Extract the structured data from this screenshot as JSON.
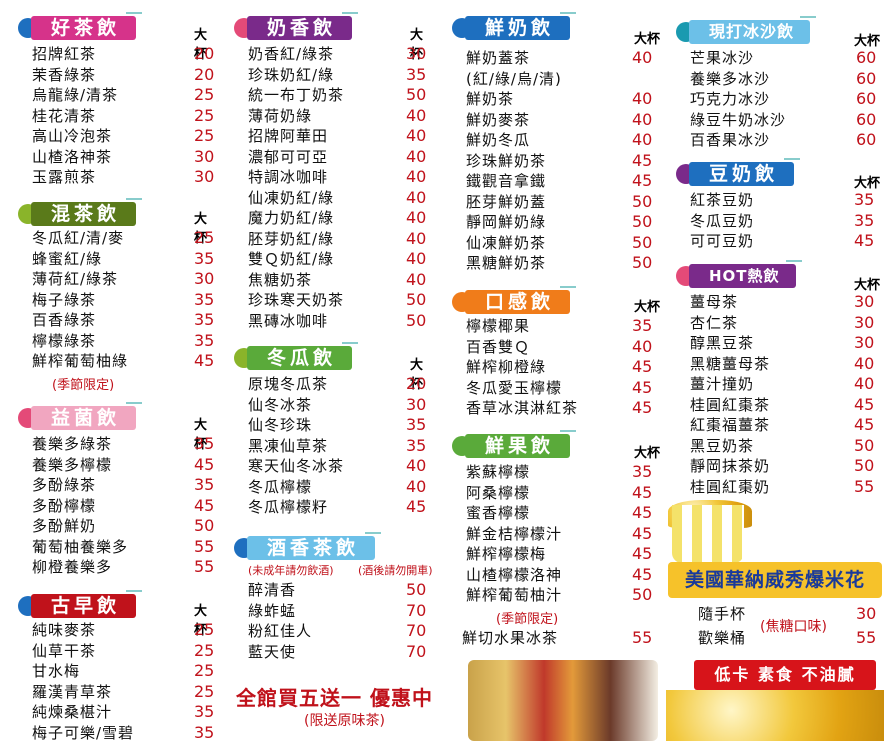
{
  "size_label": "大杯",
  "colors": {
    "price": "#c0121b",
    "pink": "#d6338a",
    "green": "#5a7a1a",
    "blue": "#1e6fbf",
    "orange": "#f07c1a",
    "purple": "#7a2a8a",
    "red": "#c0121b",
    "teal": "#1a9ab0"
  },
  "good_tea": {
    "title": "好茶飲",
    "items": [
      {
        "name": "招牌紅茶",
        "price": "20"
      },
      {
        "name": "茉香綠茶",
        "price": "20"
      },
      {
        "name": "烏龍綠/清茶",
        "price": "25"
      },
      {
        "name": "桂花清茶",
        "price": "25"
      },
      {
        "name": "高山冷泡茶",
        "price": "25"
      },
      {
        "name": "山楂洛神茶",
        "price": "30"
      },
      {
        "name": "玉露煎茶",
        "price": "30"
      }
    ]
  },
  "mixed_tea": {
    "title": "混茶飲",
    "items": [
      {
        "name": "冬瓜紅/清/麥",
        "price": "25"
      },
      {
        "name": "蜂蜜紅/綠",
        "price": "35"
      },
      {
        "name": "薄荷紅/綠茶",
        "price": "30"
      },
      {
        "name": "梅子綠茶",
        "price": "35"
      },
      {
        "name": "百香綠茶",
        "price": "35"
      },
      {
        "name": "檸檬綠茶",
        "price": "35"
      },
      {
        "name": "鮮榨葡萄柚綠",
        "price": "45"
      }
    ],
    "note": "(季節限定)"
  },
  "probiotic": {
    "title": "益菌飲",
    "items": [
      {
        "name": "養樂多綠茶",
        "price": "35"
      },
      {
        "name": "養樂多檸檬",
        "price": "45"
      },
      {
        "name": "多酚綠茶",
        "price": "35"
      },
      {
        "name": "多酚檸檬",
        "price": "45"
      },
      {
        "name": "多酚鮮奶",
        "price": "50"
      },
      {
        "name": "葡萄柚養樂多",
        "price": "55"
      },
      {
        "name": "柳橙養樂多",
        "price": "55"
      }
    ]
  },
  "classic": {
    "title": "古早飲",
    "items": [
      {
        "name": "純味麥茶",
        "price": "25"
      },
      {
        "name": "仙草干茶",
        "price": "25"
      },
      {
        "name": "甘水梅",
        "price": "25"
      },
      {
        "name": "羅漢青草茶",
        "price": "25"
      },
      {
        "name": "純煉桑椹汁",
        "price": "35"
      },
      {
        "name": "梅子可樂/雪碧",
        "price": "35"
      }
    ]
  },
  "milk_tea": {
    "title": "奶香飲",
    "items": [
      {
        "name": "奶香紅/綠茶",
        "price": "30"
      },
      {
        "name": "珍珠奶紅/綠",
        "price": "35"
      },
      {
        "name": "統一布丁奶茶",
        "price": "50"
      },
      {
        "name": "薄荷奶綠",
        "price": "40"
      },
      {
        "name": "招牌阿華田",
        "price": "40"
      },
      {
        "name": "濃郁可可亞",
        "price": "40"
      },
      {
        "name": "特調冰咖啡",
        "price": "40"
      },
      {
        "name": "仙凍奶紅/綠",
        "price": "40"
      },
      {
        "name": "魔力奶紅/綠",
        "price": "40"
      },
      {
        "name": "胚芽奶紅/綠",
        "price": "40"
      },
      {
        "name": "雙Ｑ奶紅/綠",
        "price": "40"
      },
      {
        "name": "焦糖奶茶",
        "price": "40"
      },
      {
        "name": "珍珠寒天奶茶",
        "price": "50"
      },
      {
        "name": "黑磚冰咖啡",
        "price": "50"
      }
    ]
  },
  "winter_melon": {
    "title": "冬瓜飲",
    "items": [
      {
        "name": "原塊冬瓜茶",
        "price": "20"
      },
      {
        "name": "仙冬冰茶",
        "price": "30"
      },
      {
        "name": "仙冬珍珠",
        "price": "35"
      },
      {
        "name": "黑凍仙草茶",
        "price": "35"
      },
      {
        "name": "寒天仙冬冰茶",
        "price": "40"
      },
      {
        "name": "冬瓜檸檬",
        "price": "40"
      },
      {
        "name": "冬瓜檸檬籽",
        "price": "45"
      }
    ]
  },
  "wine_tea": {
    "title": "酒香茶飲",
    "note_left": "(未成年請勿飲酒)",
    "note_right": "(酒後請勿開車)",
    "items": [
      {
        "name": "醉清香",
        "price": "50"
      },
      {
        "name": "綠蚱蜢",
        "price": "70"
      },
      {
        "name": "粉紅佳人",
        "price": "70"
      },
      {
        "name": "藍天使",
        "price": "70"
      }
    ]
  },
  "promo": {
    "main": "全館買五送一 優惠中",
    "sub": "(限送原味茶)"
  },
  "fresh_milk": {
    "title": "鮮奶飲",
    "items": [
      {
        "name": "鮮奶蓋茶",
        "price": "40"
      },
      {
        "name": "(紅/綠/烏/清)",
        "price": ""
      },
      {
        "name": "鮮奶茶",
        "price": "40"
      },
      {
        "name": "鮮奶麥茶",
        "price": "40"
      },
      {
        "name": "鮮奶冬瓜",
        "price": "40"
      },
      {
        "name": "珍珠鮮奶茶",
        "price": "45"
      },
      {
        "name": "鐵觀音拿鐵",
        "price": "45"
      },
      {
        "name": "胚芽鮮奶蓋",
        "price": "50"
      },
      {
        "name": "靜岡鮮奶綠",
        "price": "50"
      },
      {
        "name": "仙凍鮮奶茶",
        "price": "50"
      },
      {
        "name": "黑糖鮮奶茶",
        "price": "50"
      }
    ]
  },
  "mouthfeel": {
    "title": "口感飲",
    "items": [
      {
        "name": "檸檬椰果",
        "price": "35"
      },
      {
        "name": "百香雙Ｑ",
        "price": "40"
      },
      {
        "name": "鮮榨柳橙綠",
        "price": "45"
      },
      {
        "name": "冬瓜愛玉檸檬",
        "price": "45"
      },
      {
        "name": "香草冰淇淋紅茶",
        "price": "45"
      }
    ]
  },
  "fresh_fruit": {
    "title": "鮮果飲",
    "items": [
      {
        "name": "紫蘇檸檬",
        "price": "35"
      },
      {
        "name": "阿桑檸檬",
        "price": "45"
      },
      {
        "name": "蜜香檸檬",
        "price": "45"
      },
      {
        "name": "鮮金桔檸檬汁",
        "price": "45"
      },
      {
        "name": "鮮榨檸檬梅",
        "price": "45"
      },
      {
        "name": "山楂檸檬洛神",
        "price": "45"
      },
      {
        "name": "鮮榨葡萄柚汁",
        "price": "50"
      }
    ],
    "note": "(季節限定)",
    "extra": {
      "name": "鮮切水果冰茶",
      "price": "55"
    }
  },
  "smoothie": {
    "title": "現打冰沙飲",
    "items": [
      {
        "name": "芒果冰沙",
        "price": "60"
      },
      {
        "name": "養樂多冰沙",
        "price": "60"
      },
      {
        "name": "巧克力冰沙",
        "price": "60"
      },
      {
        "name": "綠豆牛奶冰沙",
        "price": "60"
      },
      {
        "name": "百香果冰沙",
        "price": "60"
      }
    ]
  },
  "soy_milk": {
    "title": "豆奶飲",
    "items": [
      {
        "name": "紅茶豆奶",
        "price": "35"
      },
      {
        "name": "冬瓜豆奶",
        "price": "35"
      },
      {
        "name": "可可豆奶",
        "price": "45"
      }
    ]
  },
  "hot_drinks": {
    "title": "HOT熱飲",
    "items": [
      {
        "name": "薑母茶",
        "price": "30"
      },
      {
        "name": "杏仁茶",
        "price": "30"
      },
      {
        "name": "醇黑豆茶",
        "price": "30"
      },
      {
        "name": "黑糖薑母茶",
        "price": "40"
      },
      {
        "name": "薑汁撞奶",
        "price": "40"
      },
      {
        "name": "桂圓紅棗茶",
        "price": "45"
      },
      {
        "name": "紅棗福薑茶",
        "price": "45"
      },
      {
        "name": "黑豆奶茶",
        "price": "50"
      },
      {
        "name": "靜岡抹茶奶",
        "price": "50"
      },
      {
        "name": "桂圓紅棗奶",
        "price": "55"
      }
    ]
  },
  "popcorn": {
    "banner": "美國華納威秀爆米花",
    "items": [
      {
        "name": "隨手杯",
        "price": "30"
      },
      {
        "name": "歡樂桶",
        "price": "55"
      }
    ],
    "flavor": "(焦糖口味)",
    "tag": "低卡 素食 不油膩"
  }
}
